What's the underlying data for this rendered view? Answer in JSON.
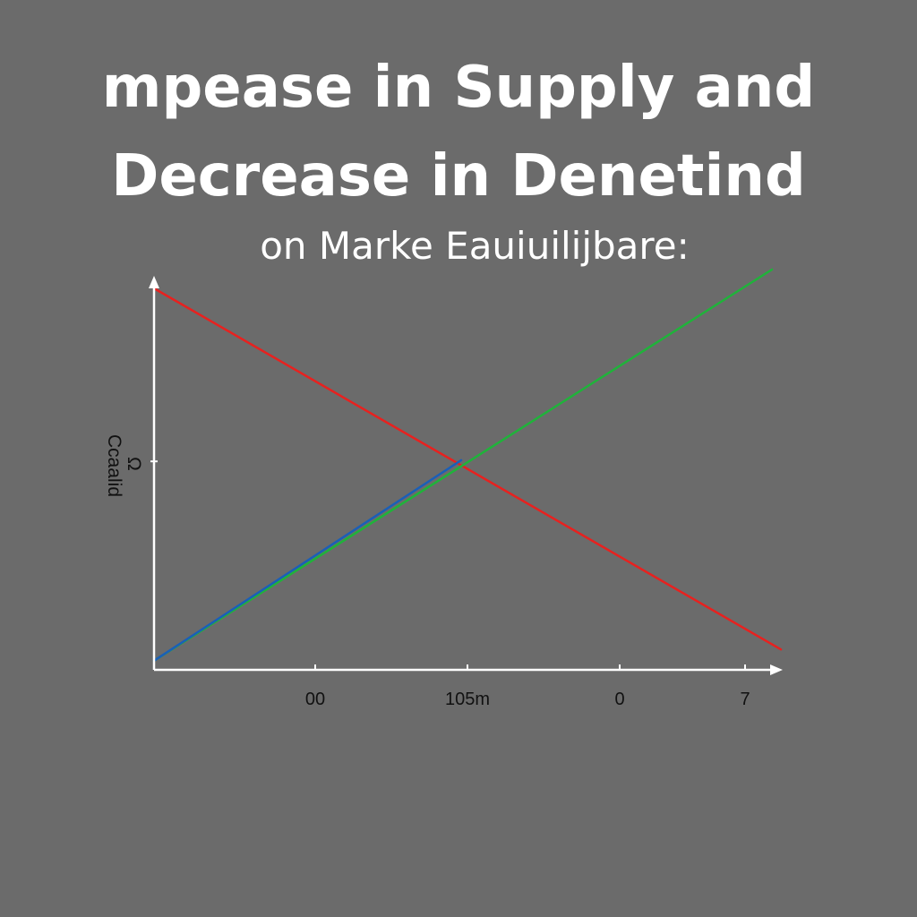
{
  "header": {
    "title_line_1": "mpease  in  Supply and",
    "title_line_2": "Decrease in Denetind",
    "subtitle": "on Marke Eauiuilijbare:"
  },
  "chart_data": {
    "type": "line",
    "title": "mpease  in  Supply and Decrease in Denetind",
    "subtitle": "on Marke Eauiuilijbare:",
    "ylabel": "Ccaalid",
    "ylabel_secondary": "Ω",
    "xlabel": "",
    "grid": false,
    "legend": "none",
    "xlim": [
      0,
      7
    ],
    "ylim": [
      0,
      10
    ],
    "x_ticks": [
      {
        "value": 1.8,
        "label": "00"
      },
      {
        "value": 3.5,
        "label": "105m"
      },
      {
        "value": 5.2,
        "label": "0"
      },
      {
        "value": 6.6,
        "label": "7"
      }
    ],
    "y_ticks": [
      {
        "value": 5.4,
        "label": ""
      }
    ],
    "series": [
      {
        "color": "#e8211f",
        "points": [
          [
            0,
            10
          ],
          [
            7,
            0.4
          ]
        ]
      },
      {
        "color": "#1fb33a",
        "points": [
          [
            0,
            0.1
          ],
          [
            6.9,
            10.5
          ]
        ]
      },
      {
        "color": "#1a5fb8",
        "points": [
          [
            0,
            0.1
          ],
          [
            3.43,
            5.43
          ]
        ]
      }
    ]
  }
}
